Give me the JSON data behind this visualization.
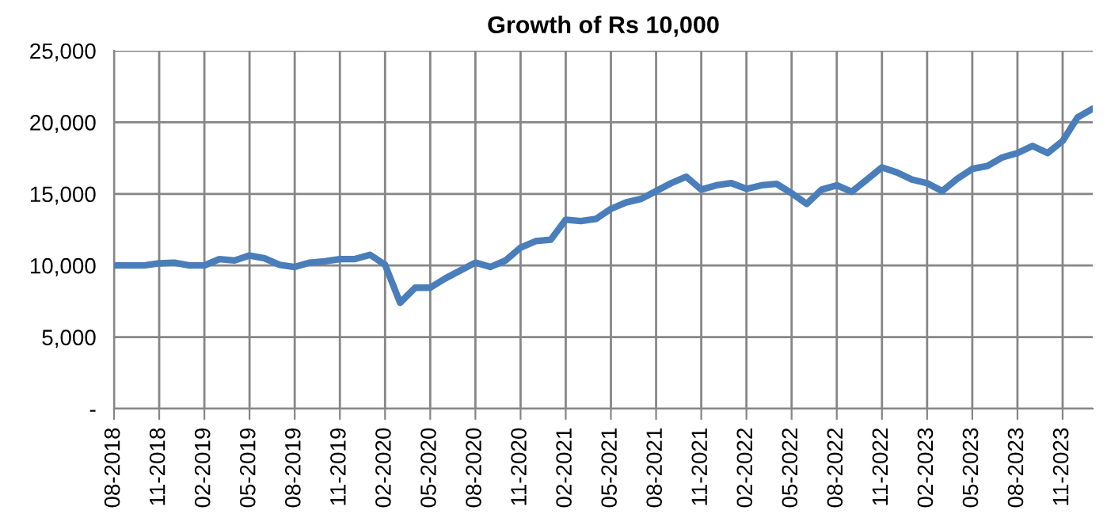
{
  "chart_data": {
    "type": "line",
    "title": "Growth of Rs 10,000",
    "categories": [
      "08-2018",
      null,
      null,
      "11-2018",
      null,
      null,
      "02-2019",
      null,
      null,
      "05-2019",
      null,
      null,
      "08-2019",
      null,
      null,
      "11-2019",
      null,
      null,
      "02-2020",
      null,
      null,
      "05-2020",
      null,
      null,
      "08-2020",
      null,
      null,
      "11-2020",
      null,
      null,
      "02-2021",
      null,
      null,
      "05-2021",
      null,
      null,
      "08-2021",
      null,
      null,
      "11-2021",
      null,
      null,
      "02-2022",
      null,
      null,
      "05-2022",
      null,
      null,
      "08-2022",
      null,
      null,
      "11-2022",
      null,
      null,
      "02-2023",
      null,
      null,
      "05-2023",
      null,
      null,
      "08-2023",
      null,
      null,
      "11-2023",
      null,
      null
    ],
    "series": [
      {
        "color": "#4a7ebb",
        "values": [
          10000,
          10000,
          10000,
          10150,
          10200,
          10000,
          10000,
          10450,
          10350,
          10700,
          10500,
          10050,
          9900,
          10200,
          10300,
          10450,
          10450,
          10750,
          10050,
          7400,
          8450,
          8450,
          9100,
          9650,
          10200,
          9900,
          10350,
          11250,
          11700,
          11800,
          13200,
          13100,
          13250,
          13950,
          14400,
          14650,
          15200,
          15750,
          16200,
          15300,
          15600,
          15750,
          15350,
          15600,
          15700,
          15050,
          14300,
          15300,
          15600,
          15150,
          16000,
          16850,
          16500,
          16000,
          15750,
          15200,
          16050,
          16750,
          16950,
          17550,
          17850,
          18350,
          17850,
          18700,
          20350,
          20950
        ]
      }
    ],
    "ylim": [
      0,
      25000
    ],
    "yticks": [
      {
        "value": 0,
        "label": "-"
      },
      {
        "value": 5000,
        "label": "5,000"
      },
      {
        "value": 10000,
        "label": "10,000"
      },
      {
        "value": 15000,
        "label": "15,000"
      },
      {
        "value": 20000,
        "label": "20,000"
      },
      {
        "value": 25000,
        "label": "25,000"
      }
    ],
    "grid": true,
    "marker": "none",
    "line_style": "solid"
  }
}
